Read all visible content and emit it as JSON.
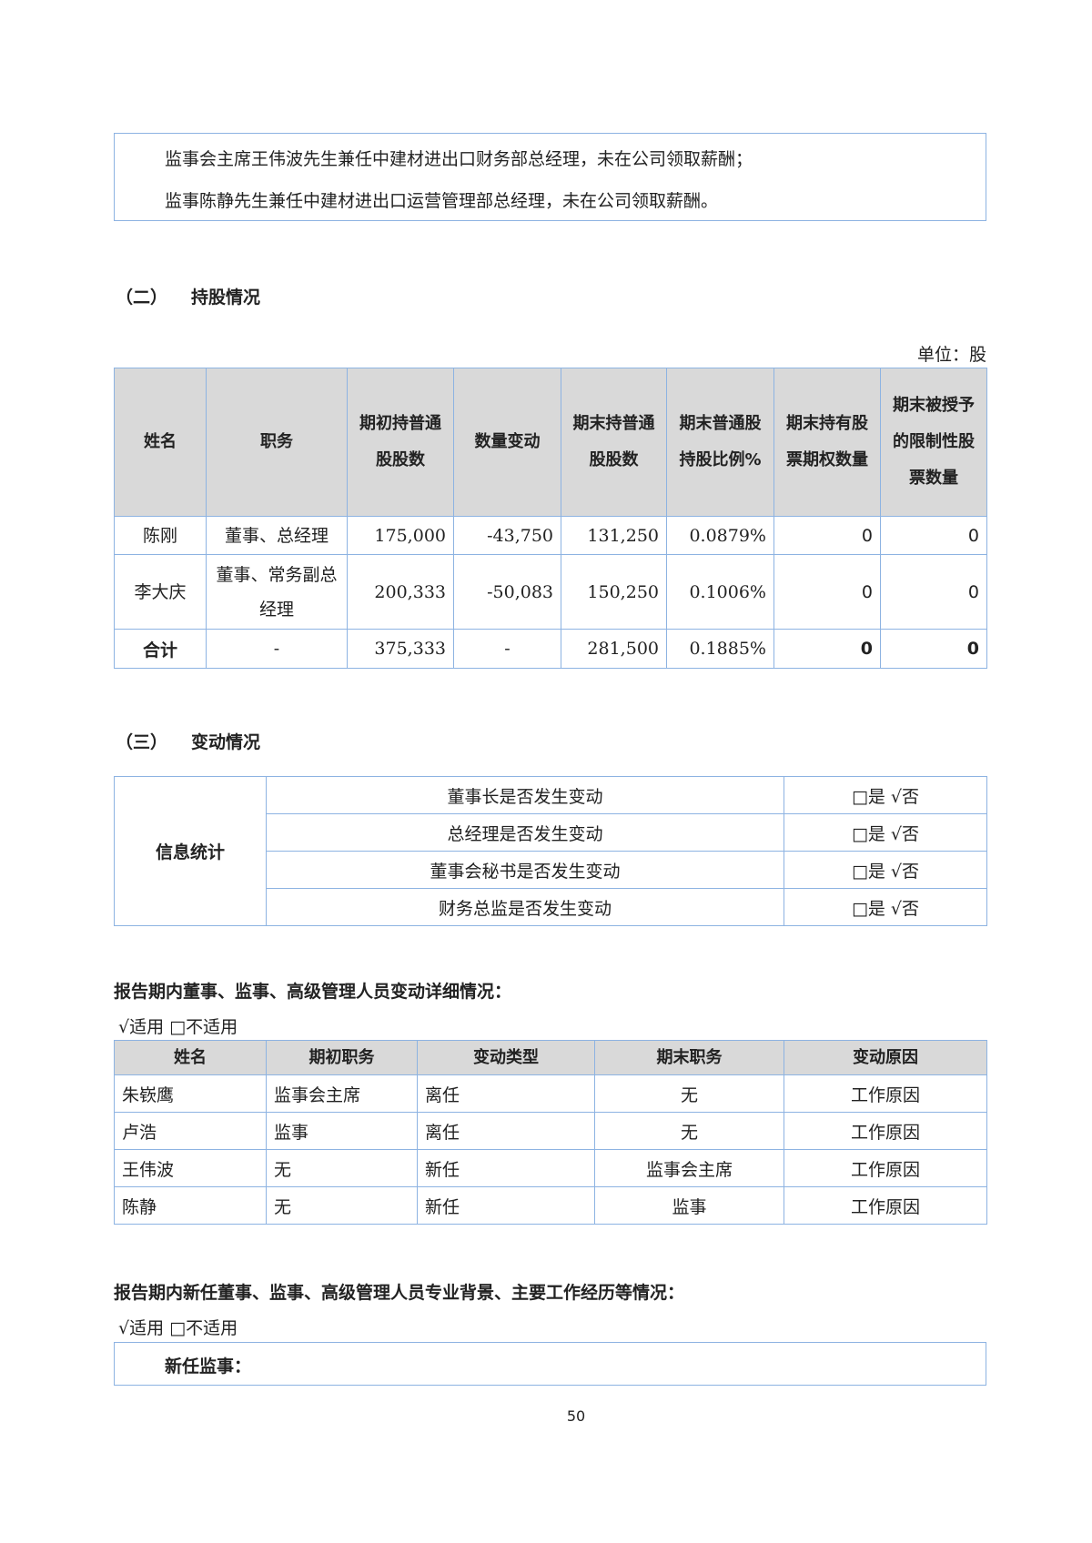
{
  "note_box": {
    "lines": [
      "监事会主席王伟波先生兼任中建材进出口财务部总经理，未在公司领取薪酬；",
      "监事陈静先生兼任中建材进出口运营管理部总经理，未在公司领取薪酬。"
    ]
  },
  "section2": {
    "num": "（二）",
    "title": "持股情况",
    "unit": "单位：股",
    "headers": [
      "姓名",
      "职务",
      "期初持普通股股数",
      "数量变动",
      "期末持普通股股数",
      "期末普通股持股比例%",
      "期末持有股票期权数量",
      "期末被授予的限制性股票数量"
    ],
    "rows": [
      [
        "陈刚",
        "董事、总经理",
        "175,000",
        "-43,750",
        "131,250",
        "0.0879%",
        "0",
        "0"
      ],
      [
        "李大庆",
        "董事、常务副总经理",
        "200,333",
        "-50,083",
        "150,250",
        "0.1006%",
        "0",
        "0"
      ]
    ],
    "total": [
      "合计",
      "-",
      "375,333",
      "-",
      "281,500",
      "0.1885%",
      "0",
      "0"
    ]
  },
  "section3": {
    "num": "（三）",
    "title": "变动情况",
    "label": "信息统计",
    "items": [
      {
        "q": "董事长是否发生变动",
        "a": "□是 √否"
      },
      {
        "q": "总经理是否发生变动",
        "a": "□是 √否"
      },
      {
        "q": "董事会秘书是否发生变动",
        "a": "□是 √否"
      },
      {
        "q": "财务总监是否发生变动",
        "a": "□是 √否"
      }
    ]
  },
  "changes": {
    "heading": "报告期内董事、监事、高级管理人员变动详细情况：",
    "applicable": "√适用 □不适用",
    "headers": [
      "姓名",
      "期初职务",
      "变动类型",
      "期末职务",
      "变动原因"
    ],
    "rows": [
      [
        "朱嵚鹰",
        "监事会主席",
        "离任",
        "无",
        "工作原因"
      ],
      [
        "卢浩",
        "监事",
        "离任",
        "无",
        "工作原因"
      ],
      [
        "王伟波",
        "无",
        "新任",
        "监事会主席",
        "工作原因"
      ],
      [
        "陈静",
        "无",
        "新任",
        "监事",
        "工作原因"
      ]
    ]
  },
  "background": {
    "heading": "报告期内新任董事、监事、高级管理人员专业背景、主要工作经历等情况：",
    "applicable": "√适用 □不适用",
    "box_label": "新任监事："
  },
  "page_number": "50"
}
